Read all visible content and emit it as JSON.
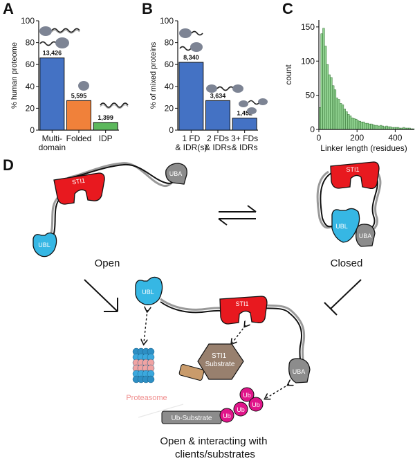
{
  "panels": {
    "a": {
      "letter": "A"
    },
    "b": {
      "letter": "B"
    },
    "c": {
      "letter": "C"
    },
    "d": {
      "letter": "D"
    }
  },
  "chart_data": [
    {
      "id": "A",
      "type": "bar",
      "ylabel": "% human proteome",
      "ylim": [
        0,
        100
      ],
      "yticks": [
        0,
        20,
        40,
        60,
        80,
        100
      ],
      "categories": [
        [
          "Multi-",
          "domain"
        ],
        [
          "Folded"
        ],
        [
          "IDP"
        ]
      ],
      "values": [
        66,
        27,
        7
      ],
      "data_labels": [
        "13,426",
        "5,595",
        "1,399"
      ],
      "colors": [
        "#4472c4",
        "#f0813a",
        "#5cb85c"
      ]
    },
    {
      "id": "B",
      "type": "bar",
      "ylabel": "% of mixed proteins",
      "ylim": [
        0,
        100
      ],
      "yticks": [
        0,
        20,
        40,
        60,
        80,
        100
      ],
      "categories": [
        [
          "1 FD",
          "& IDR(s)"
        ],
        [
          "2 FDs",
          "& IDRs"
        ],
        [
          "3+ FDs",
          "& IDRs"
        ]
      ],
      "values": [
        62,
        27,
        11
      ],
      "data_labels": [
        "8,340",
        "3,634",
        "1,452"
      ],
      "colors": [
        "#4472c4",
        "#4472c4",
        "#4472c4"
      ]
    },
    {
      "id": "C",
      "type": "bar",
      "subtype": "histogram",
      "xlabel": "Linker length (residues)",
      "ylabel": "count",
      "xlim": [
        0,
        500
      ],
      "ylim": [
        0,
        160
      ],
      "xticks": [
        0,
        200,
        400
      ],
      "yticks": [
        0,
        50,
        100,
        150
      ],
      "bin_width": 10,
      "bin_start": 0,
      "values": [
        32,
        140,
        148,
        122,
        95,
        80,
        76,
        64,
        58,
        46,
        44,
        38,
        36,
        30,
        26,
        22,
        20,
        17,
        16,
        15,
        13,
        12,
        11,
        11,
        9,
        9,
        8,
        8,
        7,
        6,
        6,
        5,
        6,
        5,
        4,
        5,
        4,
        4,
        3,
        3,
        3,
        3,
        2,
        2,
        3,
        2,
        2,
        2,
        1,
        1
      ],
      "color": "#8fd18f"
    }
  ],
  "diagram": {
    "domains": {
      "sti1": "STI1",
      "uba": "UBA",
      "ubl": "UBL"
    },
    "states": {
      "open": "Open",
      "closed": "Closed",
      "interacting": "Open & interacting with\nclients/substrates"
    },
    "partners": {
      "sti1_substrate": "STI1\nSubstrate",
      "proteasome": "Proteasome",
      "ub_substrate": "Ub-Substrate",
      "ub": "Ub"
    },
    "colors": {
      "sti1": "#e8191f",
      "uba": "#8c8c8c",
      "ubl": "#36b7e4",
      "ub": "#e0158a",
      "substrate": "#98806e",
      "proteasome_label": "#f08f8f"
    }
  }
}
